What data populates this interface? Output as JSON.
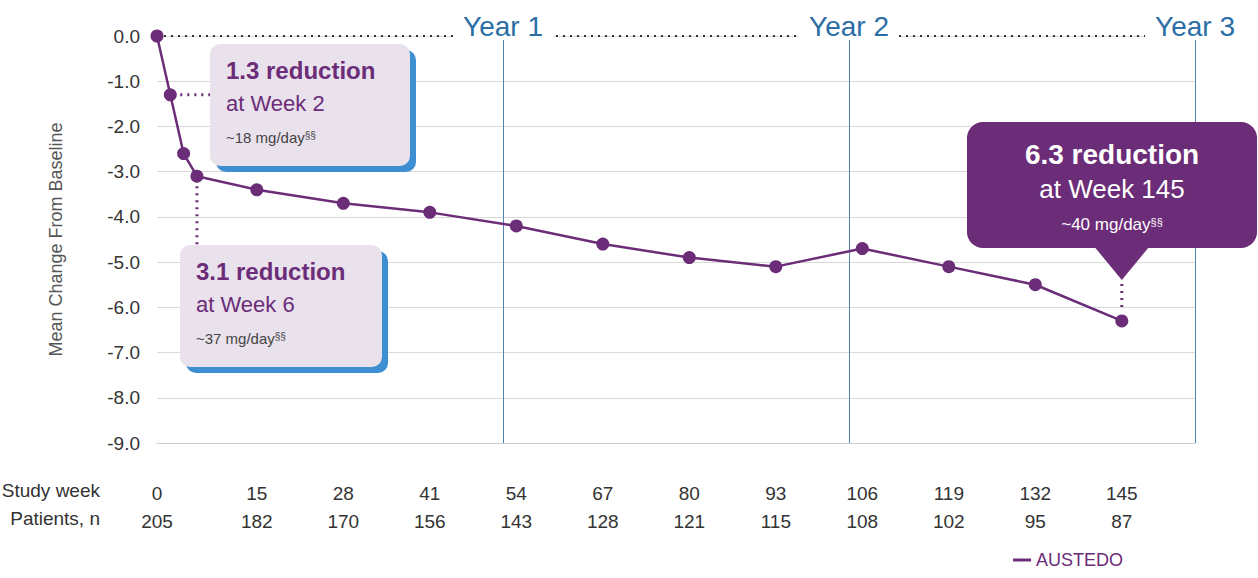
{
  "chart_data": {
    "type": "line",
    "ylabel": "Mean Change From Baseline",
    "xlabel": "Study week",
    "patients_label": "Patients, n",
    "x": [
      0,
      2,
      4,
      6,
      15,
      28,
      41,
      54,
      67,
      80,
      93,
      106,
      119,
      132,
      145
    ],
    "series": [
      {
        "name": "AUSTEDO",
        "color": "#6b2c78",
        "marker": "circle",
        "line_style": "solid",
        "values": [
          0.0,
          -1.3,
          -2.6,
          -3.1,
          -3.4,
          -3.7,
          -3.9,
          -4.2,
          -4.6,
          -4.9,
          -5.1,
          -4.7,
          -5.1,
          -5.5,
          -6.3
        ]
      }
    ],
    "xlim": [
      0,
      156
    ],
    "xticks": [
      0,
      15,
      28,
      41,
      54,
      67,
      80,
      93,
      106,
      119,
      132,
      145
    ],
    "patients": [
      205,
      182,
      170,
      156,
      143,
      128,
      121,
      115,
      108,
      102,
      95,
      87
    ],
    "ylim": [
      -9,
      0
    ],
    "yticks": [
      {
        "value": 0,
        "label": "0.0"
      },
      {
        "value": -1,
        "label": "-1.0"
      },
      {
        "value": -2,
        "label": "-2.0"
      },
      {
        "value": -3,
        "label": "-3.0"
      },
      {
        "value": -4,
        "label": "-4.0"
      },
      {
        "value": -5,
        "label": "-5.0"
      },
      {
        "value": -6,
        "label": "-6.0"
      },
      {
        "value": -7,
        "label": "-7.0"
      },
      {
        "value": -8,
        "label": "-8.0"
      },
      {
        "value": -9,
        "label": "-9.0"
      }
    ],
    "year_lines": [
      {
        "value": 52,
        "label": "Year 1"
      },
      {
        "value": 104,
        "label": "Year 2"
      },
      {
        "value": 156,
        "label": "Year 3"
      }
    ],
    "annotations": [
      {
        "x": 2,
        "y": -1.3,
        "title": "1.3 reduction",
        "subtitle": "at Week 2",
        "note": "~18 mg/day",
        "footnote": "§§"
      },
      {
        "x": 6,
        "y": -3.1,
        "title": "3.1 reduction",
        "subtitle": "at Week 6",
        "note": "~37 mg/day",
        "footnote": "§§"
      },
      {
        "x": 145,
        "y": -6.3,
        "title": "6.3 reduction",
        "subtitle": "at Week 145",
        "note": "~40 mg/day",
        "footnote": "§§"
      }
    ],
    "grid": true,
    "legend": "lower right"
  }
}
